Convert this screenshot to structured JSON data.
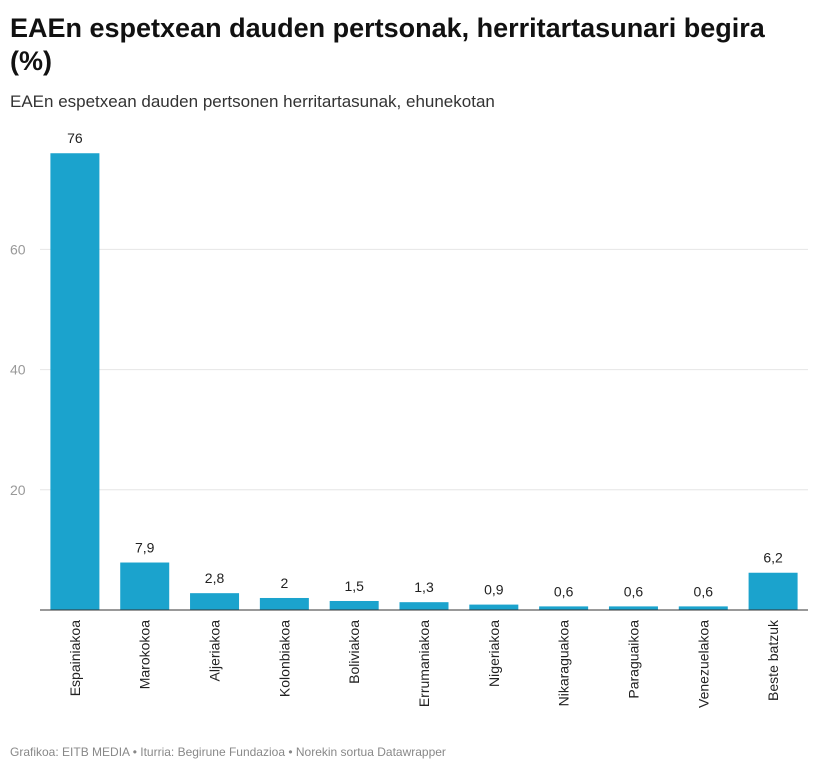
{
  "header": {
    "title": "EAEn espetxean dauden pertsonak, herritartasunari begira (%)",
    "subtitle": "EAEn espetxean dauden pertsonen herritartasunak, ehunekotan"
  },
  "footer": {
    "text": "Grafikoa: EITB MEDIA • Iturria: Begirune Fundazioa • Norekin sortua Datawrapper"
  },
  "chart_data": {
    "type": "bar",
    "title": "EAEn espetxean dauden pertsonak, herritartasunari begira (%)",
    "subtitle": "EAEn espetxean dauden pertsonen herritartasunak, ehunekotan",
    "xlabel": "",
    "ylabel": "",
    "categories": [
      "Espainiakoa",
      "Marokokoa",
      "Aljeriakoa",
      "Kolonbiakoa",
      "Boliviakoa",
      "Errumaniakoa",
      "Nigeriakoa",
      "Nikaraguakoa",
      "Paraguaikoa",
      "Venezuelakoa",
      "Beste batzuk"
    ],
    "values": [
      76,
      7.9,
      2.8,
      2,
      1.5,
      1.3,
      0.9,
      0.6,
      0.6,
      0.6,
      6.2
    ],
    "value_labels": [
      "76",
      "7,9",
      "2,8",
      "2",
      "1,5",
      "1,3",
      "0,9",
      "0,6",
      "0,6",
      "0,6",
      "6,2"
    ],
    "y_ticks": [
      20,
      40,
      60
    ],
    "ylim": [
      0,
      76
    ],
    "grid": true,
    "bar_color": "#1ba3cd"
  }
}
